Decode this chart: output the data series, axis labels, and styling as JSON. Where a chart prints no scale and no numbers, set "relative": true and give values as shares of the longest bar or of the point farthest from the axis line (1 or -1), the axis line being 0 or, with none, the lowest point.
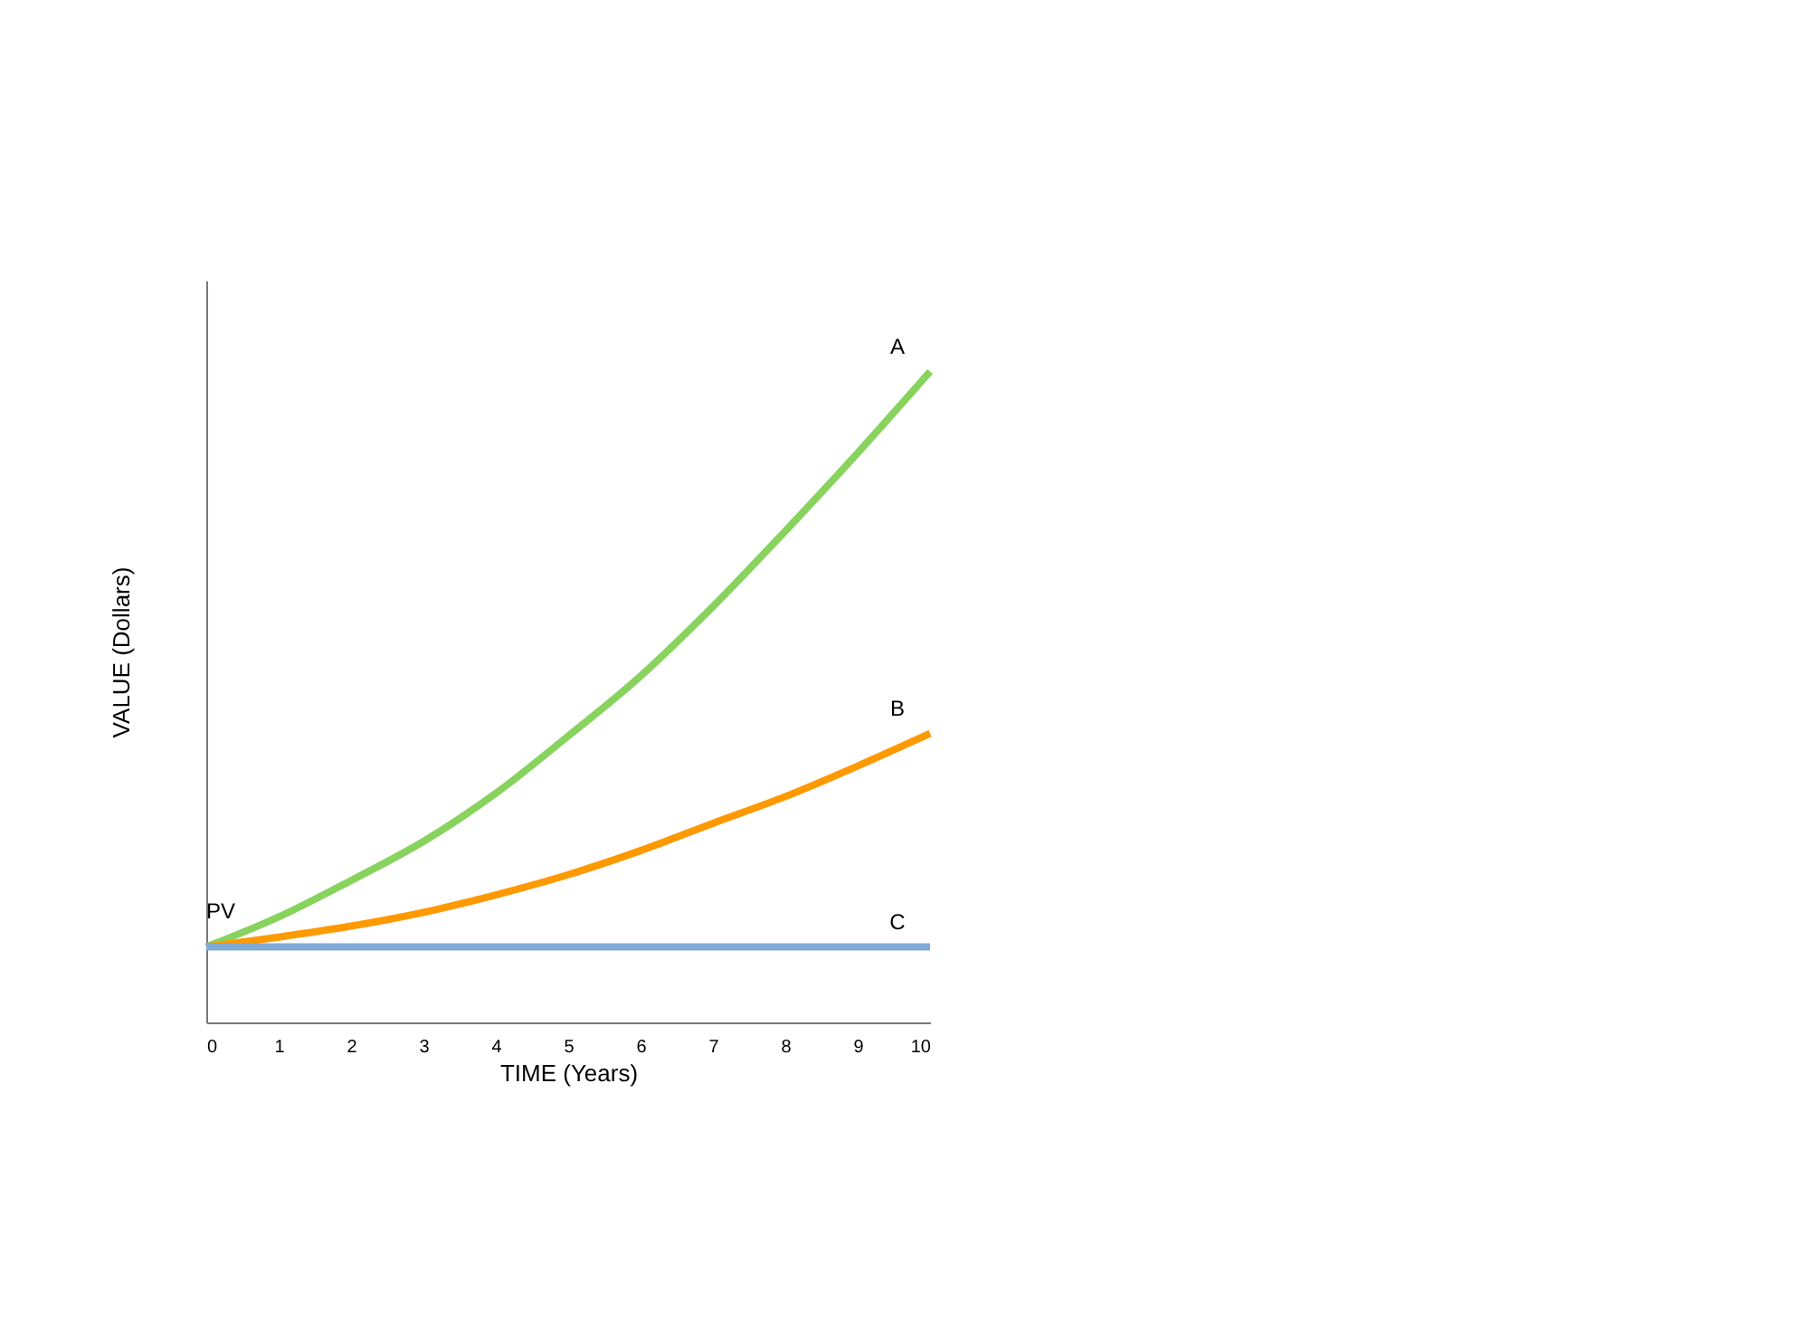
{
  "chart_data": {
    "type": "line",
    "relative": true,
    "xlabel": "TIME (Years)",
    "ylabel": "VALUE (Dollars)",
    "x": [
      0,
      1,
      2,
      3,
      4,
      5,
      6,
      7,
      8,
      9,
      10
    ],
    "xlim": [
      0,
      10
    ],
    "xticks": [
      0,
      1,
      2,
      3,
      4,
      5,
      6,
      7,
      8,
      9,
      10
    ],
    "series": [
      {
        "name": "A",
        "color": "#88d35e",
        "values": [
          0.116,
          0.162,
          0.218,
          0.278,
          0.352,
          0.44,
          0.532,
          0.639,
          0.755,
          0.875,
          1
        ]
      },
      {
        "name": "B",
        "color": "#ff9900",
        "values": [
          0.116,
          0.131,
          0.148,
          0.169,
          0.196,
          0.227,
          0.264,
          0.306,
          0.347,
          0.394,
          0.444
        ]
      },
      {
        "name": "C",
        "color": "#7faad6",
        "values": [
          0.116,
          0.116,
          0.116,
          0.116,
          0.116,
          0.116,
          0.116,
          0.116,
          0.116,
          0.116,
          0.116
        ]
      }
    ],
    "annotations": [
      {
        "text": "PV",
        "x": 0,
        "y": 0.116
      }
    ],
    "grid": false,
    "marker": "none",
    "line_style": "solid"
  }
}
